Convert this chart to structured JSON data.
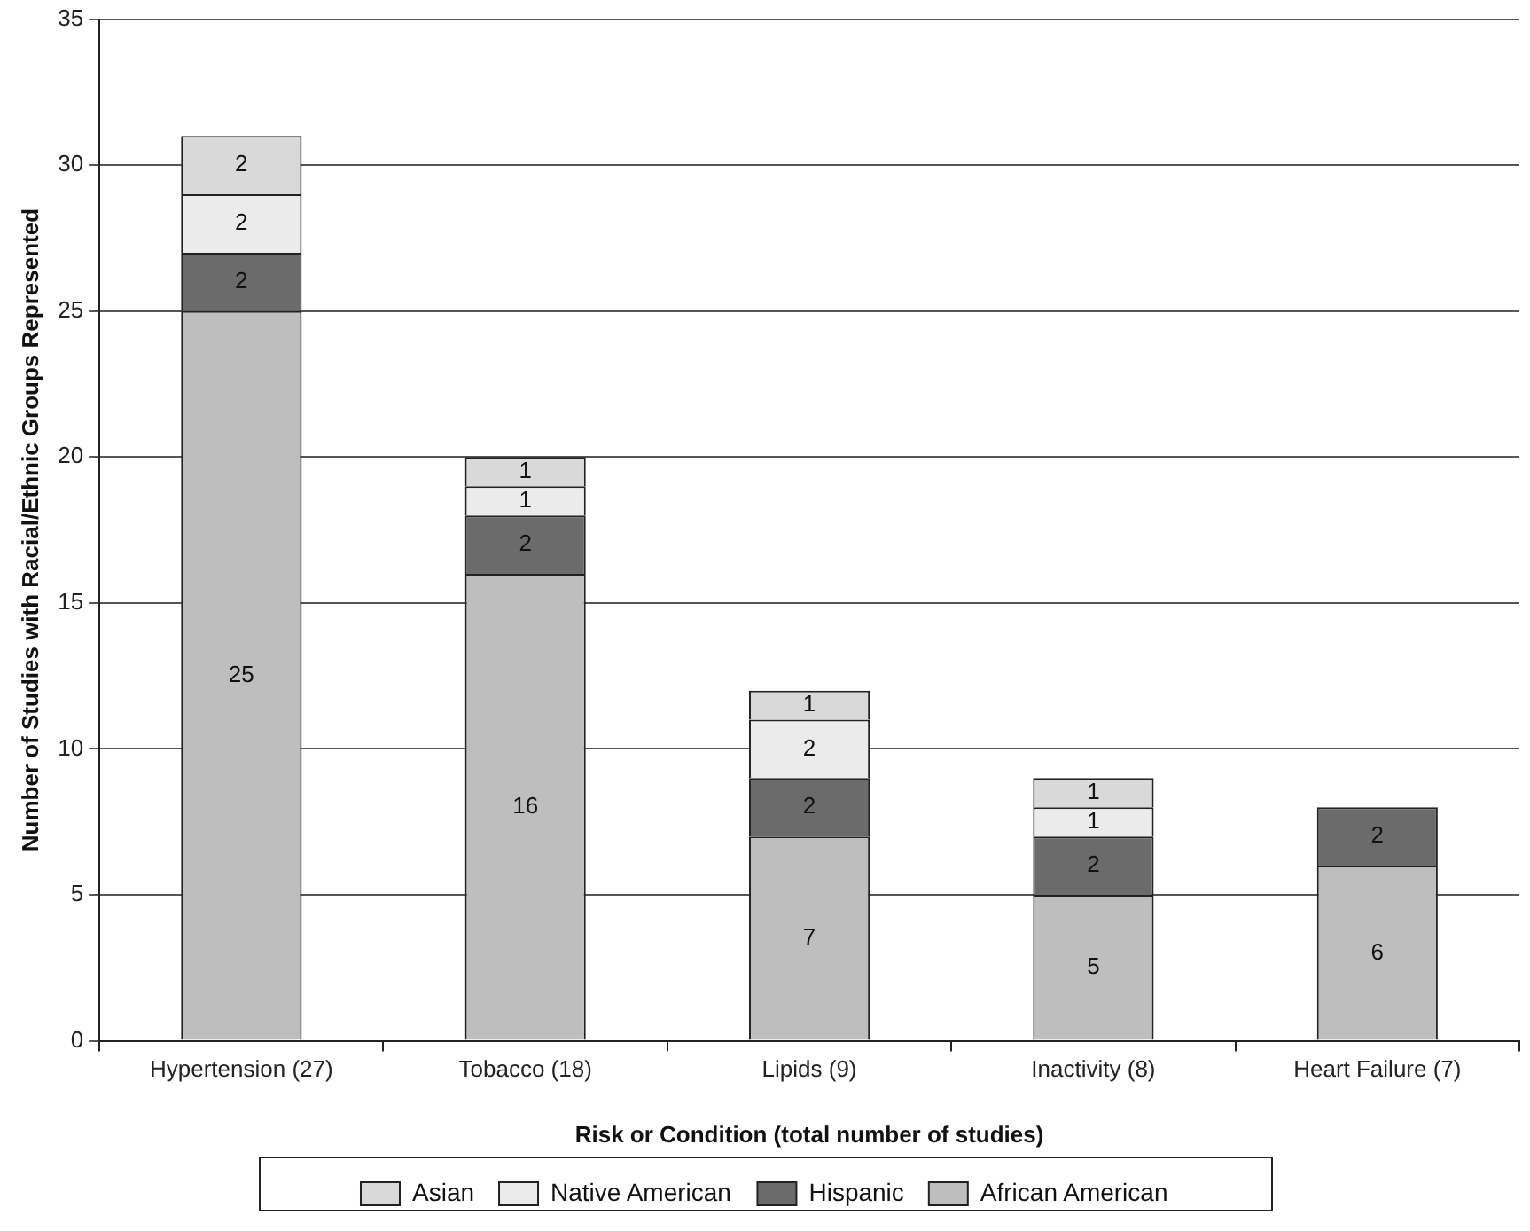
{
  "chart_data": {
    "type": "bar",
    "stacked": true,
    "xlabel": "Risk or Condition (total number of studies)",
    "ylabel": "Number of Studies with Racial/Ethnic Groups Represented",
    "categories": [
      "Hypertension (27)",
      "Tobacco (18)",
      "Lipids (9)",
      "Inactivity (8)",
      "Heart Failure (7)"
    ],
    "series": [
      {
        "name": "African American",
        "color": "#bebebe",
        "values": [
          25,
          16,
          7,
          5,
          6
        ]
      },
      {
        "name": "Hispanic",
        "color": "#6b6b6b",
        "values": [
          2,
          2,
          2,
          2,
          2
        ]
      },
      {
        "name": "Native American",
        "color": "#ebebeb",
        "values": [
          2,
          1,
          2,
          1,
          null
        ]
      },
      {
        "name": "Asian",
        "color": "#d9d9d9",
        "values": [
          2,
          1,
          1,
          1,
          null
        ]
      }
    ],
    "ylim": [
      0,
      35
    ],
    "yticks": [
      0,
      5,
      10,
      15,
      20,
      25,
      30,
      35
    ],
    "grid": "y",
    "legend": "bottom",
    "data_labels": true
  }
}
